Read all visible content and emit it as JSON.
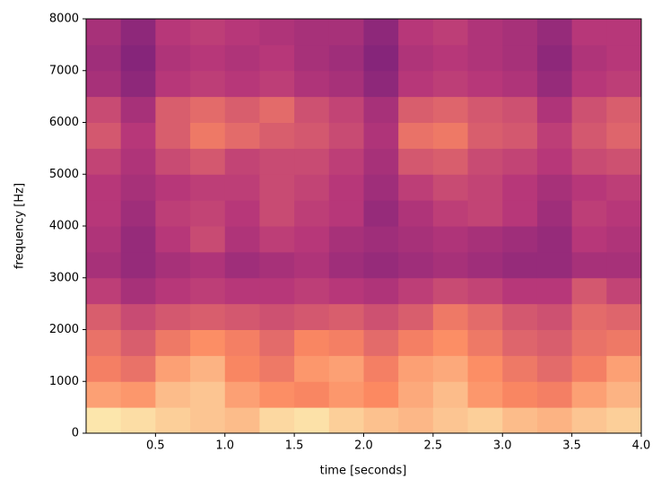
{
  "chart_data": {
    "type": "heatmap",
    "colormap": "magma",
    "x_label": "time [seconds]",
    "y_label": "frequency [Hz]",
    "xlim": [
      0,
      4.0
    ],
    "ylim": [
      0,
      8000
    ],
    "xticks": [
      0.5,
      {
        "value": 1,
        "label": "1.0"
      },
      1.5,
      {
        "value": 2,
        "label": "2.0"
      },
      2.5,
      {
        "value": 3,
        "label": "3.0"
      },
      3.5,
      {
        "value": 4,
        "label": "4.0"
      }
    ],
    "yticks": [
      0,
      1000,
      2000,
      3000,
      4000,
      5000,
      6000,
      7000,
      8000
    ],
    "z": [
      [
        0.95,
        0.93,
        0.9,
        0.88,
        0.86,
        0.92,
        0.94,
        0.9,
        0.87,
        0.85,
        0.88,
        0.9,
        0.86,
        0.84,
        0.88,
        0.9
      ],
      [
        0.8,
        0.78,
        0.86,
        0.88,
        0.8,
        0.76,
        0.74,
        0.78,
        0.75,
        0.82,
        0.86,
        0.78,
        0.74,
        0.72,
        0.8,
        0.84
      ],
      [
        0.72,
        0.68,
        0.8,
        0.84,
        0.74,
        0.7,
        0.78,
        0.8,
        0.72,
        0.8,
        0.82,
        0.76,
        0.7,
        0.66,
        0.72,
        0.8
      ],
      [
        0.68,
        0.62,
        0.7,
        0.76,
        0.72,
        0.66,
        0.74,
        0.72,
        0.66,
        0.72,
        0.76,
        0.7,
        0.64,
        0.62,
        0.68,
        0.7
      ],
      [
        0.62,
        0.56,
        0.6,
        0.62,
        0.6,
        0.58,
        0.6,
        0.62,
        0.58,
        0.62,
        0.7,
        0.66,
        0.6,
        0.58,
        0.66,
        0.64
      ],
      [
        0.52,
        0.46,
        0.5,
        0.52,
        0.5,
        0.5,
        0.52,
        0.5,
        0.48,
        0.52,
        0.56,
        0.54,
        0.5,
        0.5,
        0.6,
        0.54
      ],
      [
        0.46,
        0.42,
        0.46,
        0.48,
        0.44,
        0.46,
        0.48,
        0.44,
        0.42,
        0.44,
        0.46,
        0.44,
        0.42,
        0.42,
        0.46,
        0.46
      ],
      [
        0.48,
        0.42,
        0.5,
        0.56,
        0.48,
        0.52,
        0.5,
        0.46,
        0.44,
        0.46,
        0.48,
        0.46,
        0.44,
        0.42,
        0.5,
        0.48
      ],
      [
        0.5,
        0.44,
        0.52,
        0.54,
        0.5,
        0.56,
        0.52,
        0.5,
        0.42,
        0.48,
        0.52,
        0.54,
        0.5,
        0.44,
        0.52,
        0.5
      ],
      [
        0.5,
        0.46,
        0.5,
        0.52,
        0.52,
        0.56,
        0.54,
        0.5,
        0.44,
        0.52,
        0.56,
        0.54,
        0.5,
        0.46,
        0.5,
        0.52
      ],
      [
        0.54,
        0.48,
        0.56,
        0.6,
        0.54,
        0.56,
        0.56,
        0.52,
        0.46,
        0.6,
        0.62,
        0.56,
        0.54,
        0.5,
        0.56,
        0.58
      ],
      [
        0.6,
        0.5,
        0.62,
        0.7,
        0.66,
        0.62,
        0.6,
        0.56,
        0.48,
        0.68,
        0.7,
        0.62,
        0.6,
        0.52,
        0.6,
        0.64
      ],
      [
        0.56,
        0.46,
        0.62,
        0.66,
        0.62,
        0.66,
        0.58,
        0.54,
        0.46,
        0.62,
        0.64,
        0.6,
        0.58,
        0.48,
        0.58,
        0.62
      ],
      [
        0.46,
        0.4,
        0.5,
        0.52,
        0.5,
        0.52,
        0.48,
        0.46,
        0.4,
        0.5,
        0.52,
        0.5,
        0.48,
        0.42,
        0.5,
        0.52
      ],
      [
        0.44,
        0.38,
        0.48,
        0.5,
        0.48,
        0.5,
        0.46,
        0.44,
        0.38,
        0.48,
        0.5,
        0.48,
        0.46,
        0.4,
        0.48,
        0.5
      ],
      [
        0.46,
        0.4,
        0.5,
        0.52,
        0.5,
        0.48,
        0.46,
        0.46,
        0.4,
        0.5,
        0.52,
        0.48,
        0.46,
        0.42,
        0.5,
        0.5
      ]
    ]
  }
}
